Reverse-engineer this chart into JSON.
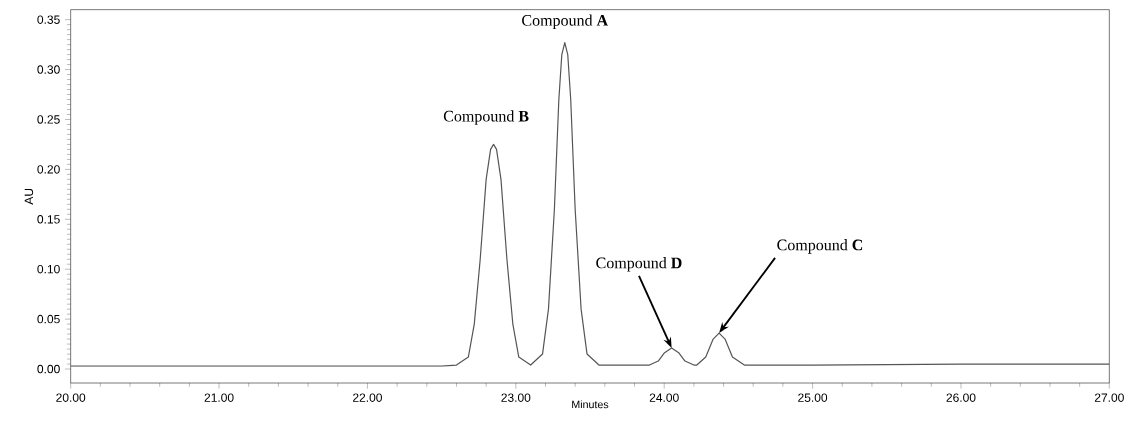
{
  "chart_data": {
    "type": "line",
    "xlabel": "Minutes",
    "ylabel": "AU",
    "x": [
      20,
      21,
      22,
      22.5,
      22.6,
      22.68,
      22.72,
      22.76,
      22.8,
      22.83,
      22.85,
      22.87,
      22.9,
      22.94,
      22.98,
      23.02,
      23.1,
      23.18,
      23.22,
      23.26,
      23.29,
      23.31,
      23.33,
      23.35,
      23.37,
      23.4,
      23.44,
      23.48,
      23.56,
      23.9,
      23.96,
      24.0,
      24.05,
      24.1,
      24.14,
      24.2,
      24.22,
      24.28,
      24.33,
      24.37,
      24.41,
      24.46,
      24.54,
      25,
      26,
      27
    ],
    "values": [
      0.003,
      0.003,
      0.003,
      0.003,
      0.004,
      0.012,
      0.045,
      0.11,
      0.19,
      0.22,
      0.225,
      0.22,
      0.19,
      0.11,
      0.045,
      0.012,
      0.004,
      0.015,
      0.06,
      0.16,
      0.27,
      0.315,
      0.327,
      0.315,
      0.27,
      0.16,
      0.06,
      0.015,
      0.004,
      0.004,
      0.008,
      0.016,
      0.021,
      0.016,
      0.008,
      0.004,
      0.004,
      0.012,
      0.03,
      0.036,
      0.03,
      0.012,
      0.004,
      0.004,
      0.005,
      0.005
    ],
    "color": "#555555",
    "marker": "none",
    "line_style": "solid",
    "grid": false,
    "xlim": [
      20,
      27
    ],
    "ylim": [
      -0.014,
      0.36
    ],
    "xticks": [
      {
        "value": 20,
        "label": "20.00"
      },
      {
        "value": 21,
        "label": "21.00"
      },
      {
        "value": 22,
        "label": "22.00"
      },
      {
        "value": 23,
        "label": "23.00"
      },
      {
        "value": 24,
        "label": "24.00"
      },
      {
        "value": 25,
        "label": "25.00"
      },
      {
        "value": 26,
        "label": "26.00"
      },
      {
        "value": 27,
        "label": "27.00"
      }
    ],
    "yticks": [
      {
        "value": 0,
        "label": "0.00"
      },
      {
        "value": 0.05,
        "label": "0.05"
      },
      {
        "value": 0.1,
        "label": "0.10"
      },
      {
        "value": 0.15,
        "label": "0.15"
      },
      {
        "value": 0.2,
        "label": "0.20"
      },
      {
        "value": 0.25,
        "label": "0.25"
      },
      {
        "value": 0.3,
        "label": "0.30"
      },
      {
        "value": 0.35,
        "label": "0.35"
      }
    ],
    "annotations": [
      {
        "text": "Compound **A**",
        "x": 23.33,
        "y": 0.327
      },
      {
        "text": "Compound **B**",
        "x": 22.85,
        "y": 0.225
      },
      {
        "text": "Compound **D**",
        "x": 24.05,
        "y": 0.021
      },
      {
        "text": "Compound **C**",
        "x": 24.37,
        "y": 0.036
      }
    ]
  }
}
